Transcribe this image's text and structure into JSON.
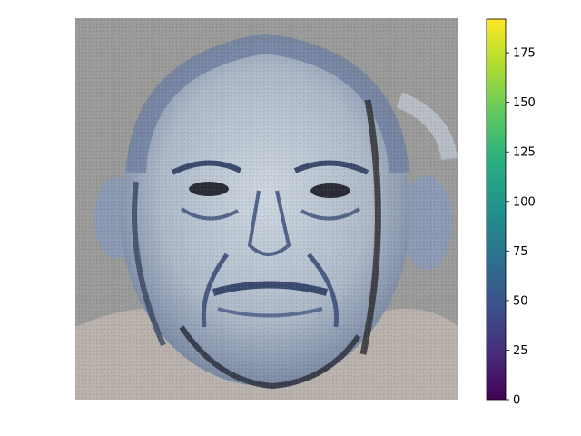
{
  "figure": {
    "image": {
      "subject": "elderly-man-face-portrait",
      "palette": {
        "background": "#9a9a98",
        "skin_light": "#c9d3dd",
        "skin_shadow": "#5a6a88",
        "hair": "#7c8aa6",
        "dark_lines": "#1f2430",
        "shirt": "#c3b9b3"
      }
    },
    "colorbar": {
      "colormap": "viridis",
      "min": 0,
      "max": 192,
      "ticks": [
        0,
        25,
        50,
        75,
        100,
        125,
        150,
        175
      ],
      "tick_labels": [
        "0",
        "25",
        "50",
        "75",
        "100",
        "125",
        "150",
        "175"
      ]
    }
  }
}
